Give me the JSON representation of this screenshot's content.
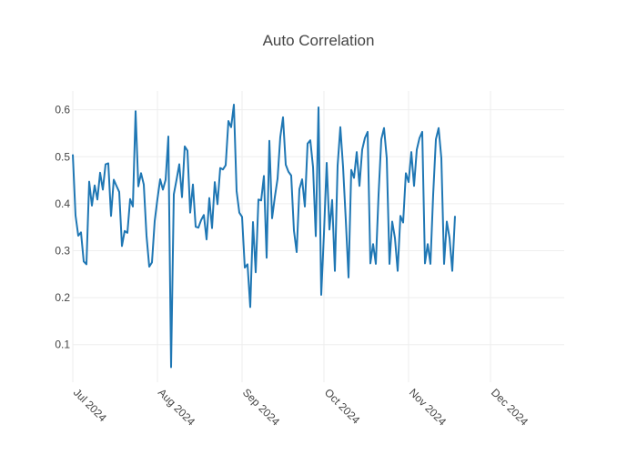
{
  "chart_data": {
    "type": "line",
    "title": "Auto Correlation",
    "xlabel": "",
    "ylabel": "",
    "x_range": [
      "2024-07-01",
      "2024-12-28"
    ],
    "ylim": [
      0.02,
      0.64
    ],
    "grid": true,
    "line_color": "#1f77b4",
    "x_tick_labels": [
      "Jul 2024",
      "Aug 2024",
      "Sep 2024",
      "Oct 2024",
      "Nov 2024",
      "Dec 2024"
    ],
    "x_tick_dates": [
      "2024-07-01",
      "2024-08-01",
      "2024-09-01",
      "2024-10-01",
      "2024-11-01",
      "2024-12-01"
    ],
    "y_tick_labels": [
      "0.1",
      "0.2",
      "0.3",
      "0.4",
      "0.5",
      "0.6"
    ],
    "y_ticks": [
      0.1,
      0.2,
      0.3,
      0.4,
      0.5,
      0.6
    ],
    "series": [
      {
        "points": [
          [
            "2024-07-01",
            0.505
          ],
          [
            "2024-07-02",
            0.375
          ],
          [
            "2024-07-03",
            0.332
          ],
          [
            "2024-07-04",
            0.339
          ],
          [
            "2024-07-05",
            0.277
          ],
          [
            "2024-07-06",
            0.271
          ],
          [
            "2024-07-07",
            0.447
          ],
          [
            "2024-07-08",
            0.396
          ],
          [
            "2024-07-09",
            0.439
          ],
          [
            "2024-07-10",
            0.409
          ],
          [
            "2024-07-11",
            0.466
          ],
          [
            "2024-07-12",
            0.43
          ],
          [
            "2024-07-13",
            0.484
          ],
          [
            "2024-07-14",
            0.486
          ],
          [
            "2024-07-15",
            0.374
          ],
          [
            "2024-07-16",
            0.451
          ],
          [
            "2024-07-17",
            0.438
          ],
          [
            "2024-07-18",
            0.425
          ],
          [
            "2024-07-19",
            0.31
          ],
          [
            "2024-07-20",
            0.342
          ],
          [
            "2024-07-21",
            0.338
          ],
          [
            "2024-07-22",
            0.41
          ],
          [
            "2024-07-23",
            0.394
          ],
          [
            "2024-07-24",
            0.597
          ],
          [
            "2024-07-25",
            0.437
          ],
          [
            "2024-07-26",
            0.465
          ],
          [
            "2024-07-27",
            0.441
          ],
          [
            "2024-07-28",
            0.332
          ],
          [
            "2024-07-29",
            0.266
          ],
          [
            "2024-07-30",
            0.275
          ],
          [
            "2024-07-31",
            0.363
          ],
          [
            "2024-08-01",
            0.41
          ],
          [
            "2024-08-02",
            0.452
          ],
          [
            "2024-08-03",
            0.43
          ],
          [
            "2024-08-04",
            0.451
          ],
          [
            "2024-08-05",
            0.543
          ],
          [
            "2024-08-06",
            0.052
          ],
          [
            "2024-08-07",
            0.42
          ],
          [
            "2024-08-08",
            0.451
          ],
          [
            "2024-08-09",
            0.484
          ],
          [
            "2024-08-10",
            0.414
          ],
          [
            "2024-08-11",
            0.522
          ],
          [
            "2024-08-12",
            0.513
          ],
          [
            "2024-08-13",
            0.381
          ],
          [
            "2024-08-14",
            0.441
          ],
          [
            "2024-08-15",
            0.351
          ],
          [
            "2024-08-16",
            0.349
          ],
          [
            "2024-08-17",
            0.365
          ],
          [
            "2024-08-18",
            0.376
          ],
          [
            "2024-08-19",
            0.324
          ],
          [
            "2024-08-20",
            0.412
          ],
          [
            "2024-08-21",
            0.348
          ],
          [
            "2024-08-22",
            0.446
          ],
          [
            "2024-08-23",
            0.399
          ],
          [
            "2024-08-24",
            0.476
          ],
          [
            "2024-08-25",
            0.473
          ],
          [
            "2024-08-26",
            0.482
          ],
          [
            "2024-08-27",
            0.576
          ],
          [
            "2024-08-28",
            0.563
          ],
          [
            "2024-08-29",
            0.611
          ],
          [
            "2024-08-30",
            0.427
          ],
          [
            "2024-08-31",
            0.381
          ],
          [
            "2024-09-01",
            0.372
          ],
          [
            "2024-09-02",
            0.264
          ],
          [
            "2024-09-03",
            0.271
          ],
          [
            "2024-09-04",
            0.18
          ],
          [
            "2024-09-05",
            0.361
          ],
          [
            "2024-09-06",
            0.254
          ],
          [
            "2024-09-07",
            0.409
          ],
          [
            "2024-09-08",
            0.407
          ],
          [
            "2024-09-09",
            0.459
          ],
          [
            "2024-09-10",
            0.285
          ],
          [
            "2024-09-11",
            0.534
          ],
          [
            "2024-09-12",
            0.369
          ],
          [
            "2024-09-13",
            0.414
          ],
          [
            "2024-09-14",
            0.453
          ],
          [
            "2024-09-15",
            0.542
          ],
          [
            "2024-09-16",
            0.584
          ],
          [
            "2024-09-17",
            0.483
          ],
          [
            "2024-09-18",
            0.468
          ],
          [
            "2024-09-19",
            0.46
          ],
          [
            "2024-09-20",
            0.343
          ],
          [
            "2024-09-21",
            0.297
          ],
          [
            "2024-09-22",
            0.431
          ],
          [
            "2024-09-23",
            0.452
          ],
          [
            "2024-09-24",
            0.394
          ],
          [
            "2024-09-25",
            0.528
          ],
          [
            "2024-09-26",
            0.535
          ],
          [
            "2024-09-27",
            0.478
          ],
          [
            "2024-09-28",
            0.331
          ],
          [
            "2024-09-29",
            0.605
          ],
          [
            "2024-09-30",
            0.206
          ],
          [
            "2024-10-01",
            0.336
          ],
          [
            "2024-10-02",
            0.487
          ],
          [
            "2024-10-03",
            0.345
          ],
          [
            "2024-10-04",
            0.408
          ],
          [
            "2024-10-05",
            0.257
          ],
          [
            "2024-10-06",
            0.481
          ],
          [
            "2024-10-07",
            0.563
          ],
          [
            "2024-10-08",
            0.478
          ],
          [
            "2024-10-09",
            0.365
          ],
          [
            "2024-10-10",
            0.243
          ],
          [
            "2024-10-11",
            0.472
          ],
          [
            "2024-10-12",
            0.455
          ],
          [
            "2024-10-13",
            0.51
          ],
          [
            "2024-10-14",
            0.438
          ],
          [
            "2024-10-15",
            0.515
          ],
          [
            "2024-10-16",
            0.54
          ],
          [
            "2024-10-17",
            0.553
          ],
          [
            "2024-10-18",
            0.273
          ],
          [
            "2024-10-19",
            0.314
          ],
          [
            "2024-10-20",
            0.272
          ],
          [
            "2024-10-21",
            0.419
          ],
          [
            "2024-10-22",
            0.537
          ],
          [
            "2024-10-23",
            0.561
          ],
          [
            "2024-10-24",
            0.497
          ],
          [
            "2024-10-25",
            0.272
          ],
          [
            "2024-10-26",
            0.362
          ],
          [
            "2024-10-27",
            0.327
          ],
          [
            "2024-10-28",
            0.257
          ],
          [
            "2024-10-29",
            0.374
          ],
          [
            "2024-10-30",
            0.36
          ],
          [
            "2024-10-31",
            0.465
          ],
          [
            "2024-11-01",
            0.446
          ],
          [
            "2024-11-02",
            0.51
          ],
          [
            "2024-11-03",
            0.438
          ],
          [
            "2024-11-04",
            0.515
          ],
          [
            "2024-11-05",
            0.54
          ],
          [
            "2024-11-06",
            0.553
          ],
          [
            "2024-11-07",
            0.273
          ],
          [
            "2024-11-08",
            0.314
          ],
          [
            "2024-11-09",
            0.272
          ],
          [
            "2024-11-10",
            0.419
          ],
          [
            "2024-11-11",
            0.537
          ],
          [
            "2024-11-12",
            0.561
          ],
          [
            "2024-11-13",
            0.497
          ],
          [
            "2024-11-14",
            0.272
          ],
          [
            "2024-11-15",
            0.362
          ],
          [
            "2024-11-16",
            0.327
          ],
          [
            "2024-11-17",
            0.257
          ],
          [
            "2024-11-18",
            0.374
          ]
        ]
      }
    ]
  }
}
